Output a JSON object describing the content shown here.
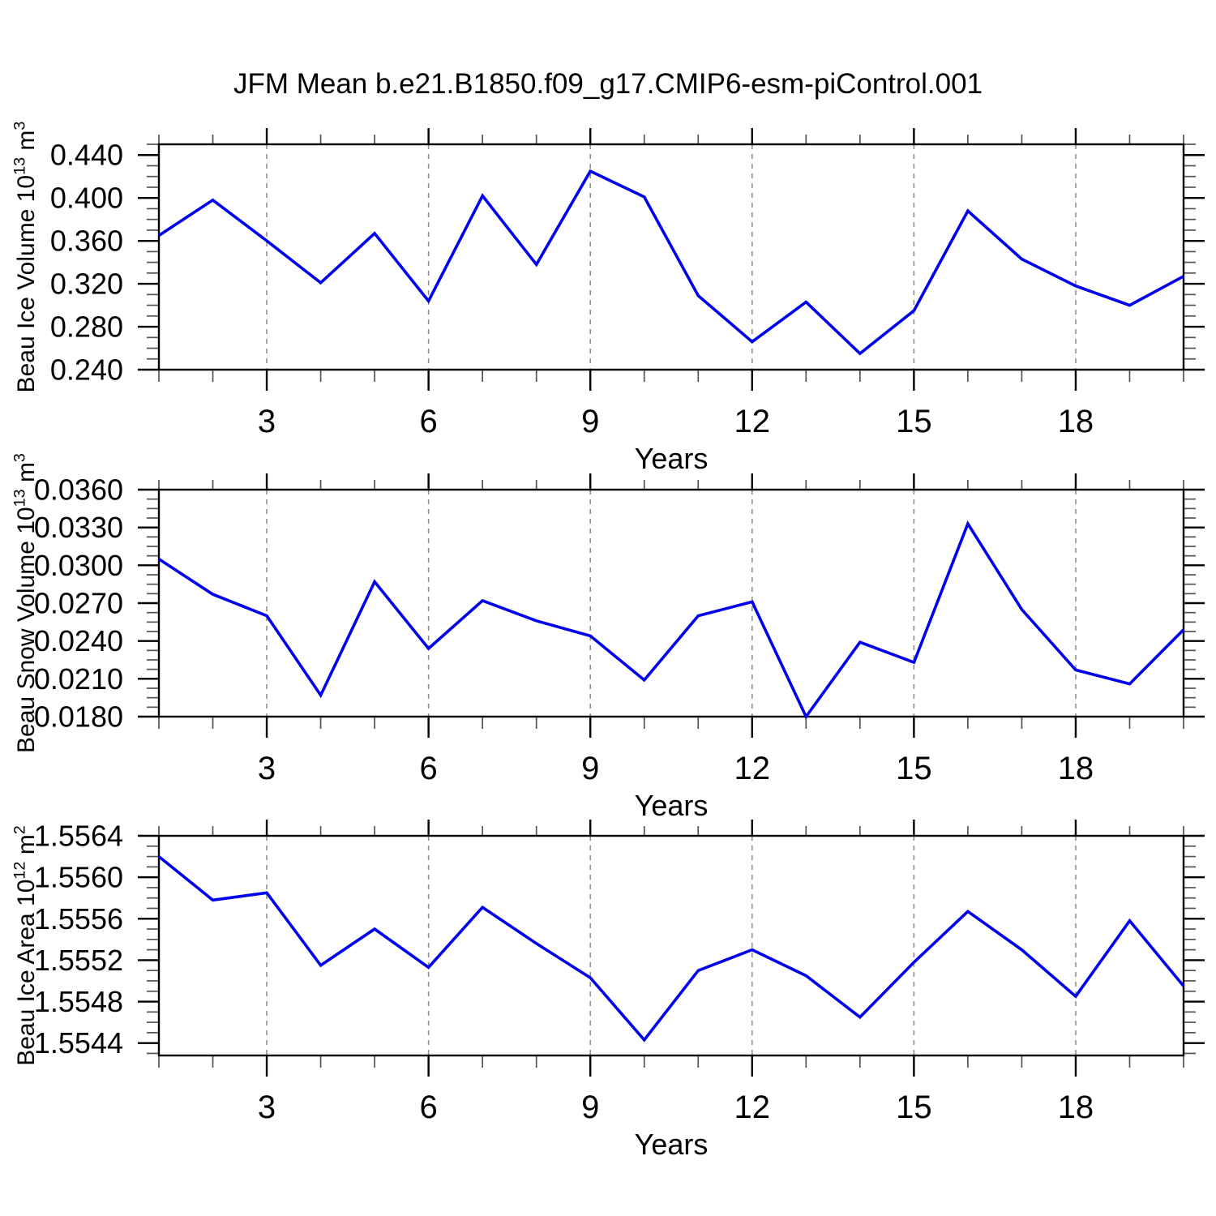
{
  "title": "JFM Mean b.e21.B1850.f09_g17.CMIP6-esm-piControl.001",
  "background_color": "#ffffff",
  "line_color": "#0000EE",
  "grid_color": "#8f8f8f",
  "chart_data": [
    {
      "type": "line",
      "name": "beau-ice-volume",
      "ylabel": "Beau Ice Volume 10¹³ m³",
      "xlabel": "Years",
      "x": [
        1,
        2,
        3,
        4,
        5,
        6,
        7,
        8,
        9,
        10,
        11,
        12,
        13,
        14,
        15,
        16,
        17,
        18,
        19,
        20
      ],
      "values": [
        0.365,
        0.398,
        0.36,
        0.321,
        0.367,
        0.304,
        0.402,
        0.338,
        0.425,
        0.401,
        0.309,
        0.266,
        0.303,
        0.255,
        0.295,
        0.388,
        0.343,
        0.318,
        0.3,
        0.327
      ],
      "xlim": [
        1,
        20
      ],
      "ylim": [
        0.24,
        0.45
      ],
      "yticks": [
        0.24,
        0.28,
        0.32,
        0.36,
        0.4,
        0.44
      ],
      "ytick_labels": [
        "0.240",
        "0.280",
        "0.320",
        "0.360",
        "0.400",
        "0.440"
      ],
      "y_minor_step": 0.01,
      "xticks": [
        3,
        6,
        9,
        12,
        15,
        18
      ],
      "xtick_labels": [
        "3",
        "6",
        "9",
        "12",
        "15",
        "18"
      ],
      "x_minor_step": 1,
      "grid": "vertical-dashed",
      "line_color": "#0000EE"
    },
    {
      "type": "line",
      "name": "beau-snow-volume",
      "ylabel": "Beau Snow Volume 10¹³ m³",
      "xlabel": "Years",
      "x": [
        1,
        2,
        3,
        4,
        5,
        6,
        7,
        8,
        9,
        10,
        11,
        12,
        13,
        14,
        15,
        16,
        17,
        18,
        19,
        20
      ],
      "values": [
        0.0305,
        0.0277,
        0.026,
        0.0197,
        0.0287,
        0.0234,
        0.0272,
        0.0256,
        0.0244,
        0.0209,
        0.026,
        0.0271,
        0.018,
        0.0239,
        0.0223,
        0.0333,
        0.0265,
        0.0217,
        0.0206,
        0.0249
      ],
      "xlim": [
        1,
        20
      ],
      "ylim": [
        0.018,
        0.036
      ],
      "yticks": [
        0.018,
        0.021,
        0.024,
        0.027,
        0.03,
        0.033,
        0.036
      ],
      "ytick_labels": [
        "0.0180",
        "0.0210",
        "0.0240",
        "0.0270",
        "0.0300",
        "0.0330",
        "0.0360"
      ],
      "y_minor_step": 0.00075,
      "xticks": [
        3,
        6,
        9,
        12,
        15,
        18
      ],
      "xtick_labels": [
        "3",
        "6",
        "9",
        "12",
        "15",
        "18"
      ],
      "x_minor_step": 1,
      "grid": "vertical-dashed",
      "line_color": "#0000EE"
    },
    {
      "type": "line",
      "name": "beau-ice-area",
      "ylabel": "Beau Ice Area 10¹² m²",
      "xlabel": "Years",
      "x": [
        1,
        2,
        3,
        4,
        5,
        6,
        7,
        8,
        9,
        10,
        11,
        12,
        13,
        14,
        15,
        16,
        17,
        18,
        19,
        20
      ],
      "values": [
        1.5562,
        1.55578,
        1.55585,
        1.55515,
        1.5555,
        1.55513,
        1.55571,
        1.55536,
        1.55503,
        1.55443,
        1.5551,
        1.5553,
        1.55505,
        1.55465,
        1.55518,
        1.55567,
        1.5553,
        1.55485,
        1.55558,
        1.55495
      ],
      "xlim": [
        1,
        20
      ],
      "ylim": [
        1.55428,
        1.5564
      ],
      "yticks": [
        1.5544,
        1.5548,
        1.5552,
        1.5556,
        1.556,
        1.5564
      ],
      "ytick_labels": [
        "1.5544",
        "1.5548",
        "1.5552",
        "1.5556",
        "1.5560",
        "1.5564"
      ],
      "y_minor_step": 0.0001,
      "xticks": [
        3,
        6,
        9,
        12,
        15,
        18
      ],
      "xtick_labels": [
        "3",
        "6",
        "9",
        "12",
        "15",
        "18"
      ],
      "x_minor_step": 1,
      "grid": "vertical-dashed",
      "line_color": "#0000EE"
    }
  ]
}
